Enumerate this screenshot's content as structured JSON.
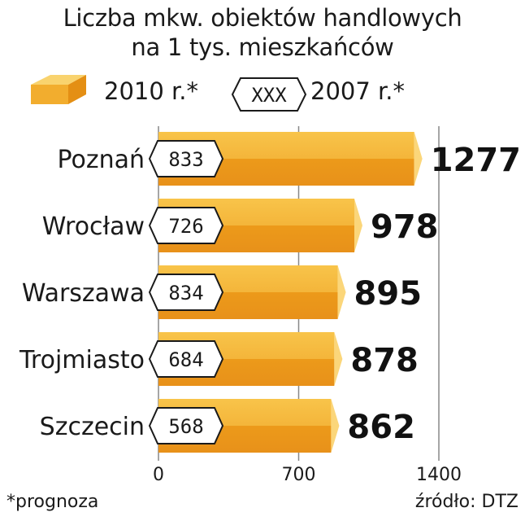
{
  "chart_data": {
    "type": "bar",
    "orientation": "horizontal",
    "title": "Liczba mkw. obiektów handlowych",
    "subtitle": "na 1 tys. mieszkańców",
    "categories": [
      "Poznań",
      "Wrocław",
      "Warszawa",
      "Trojmiasto",
      "Szczecin"
    ],
    "series": [
      {
        "name": "2010 r.*",
        "values": [
          1277,
          978,
          895,
          878,
          862
        ]
      },
      {
        "name": "2007 r.*",
        "values": [
          833,
          726,
          834,
          684,
          568
        ]
      }
    ],
    "legend_marker_label": "XXX",
    "xlim": [
      0,
      1400
    ],
    "xticks": [
      0,
      700,
      1400
    ],
    "grid": true,
    "legend_position": "top",
    "colors": {
      "bar_top": "#f6bd3c",
      "bar_bottom": "#ec9a1a",
      "tip": "#fbd67a",
      "grid": "#888888"
    }
  },
  "footer": {
    "note": "*prognoza",
    "source": "źródło: DTZ"
  }
}
